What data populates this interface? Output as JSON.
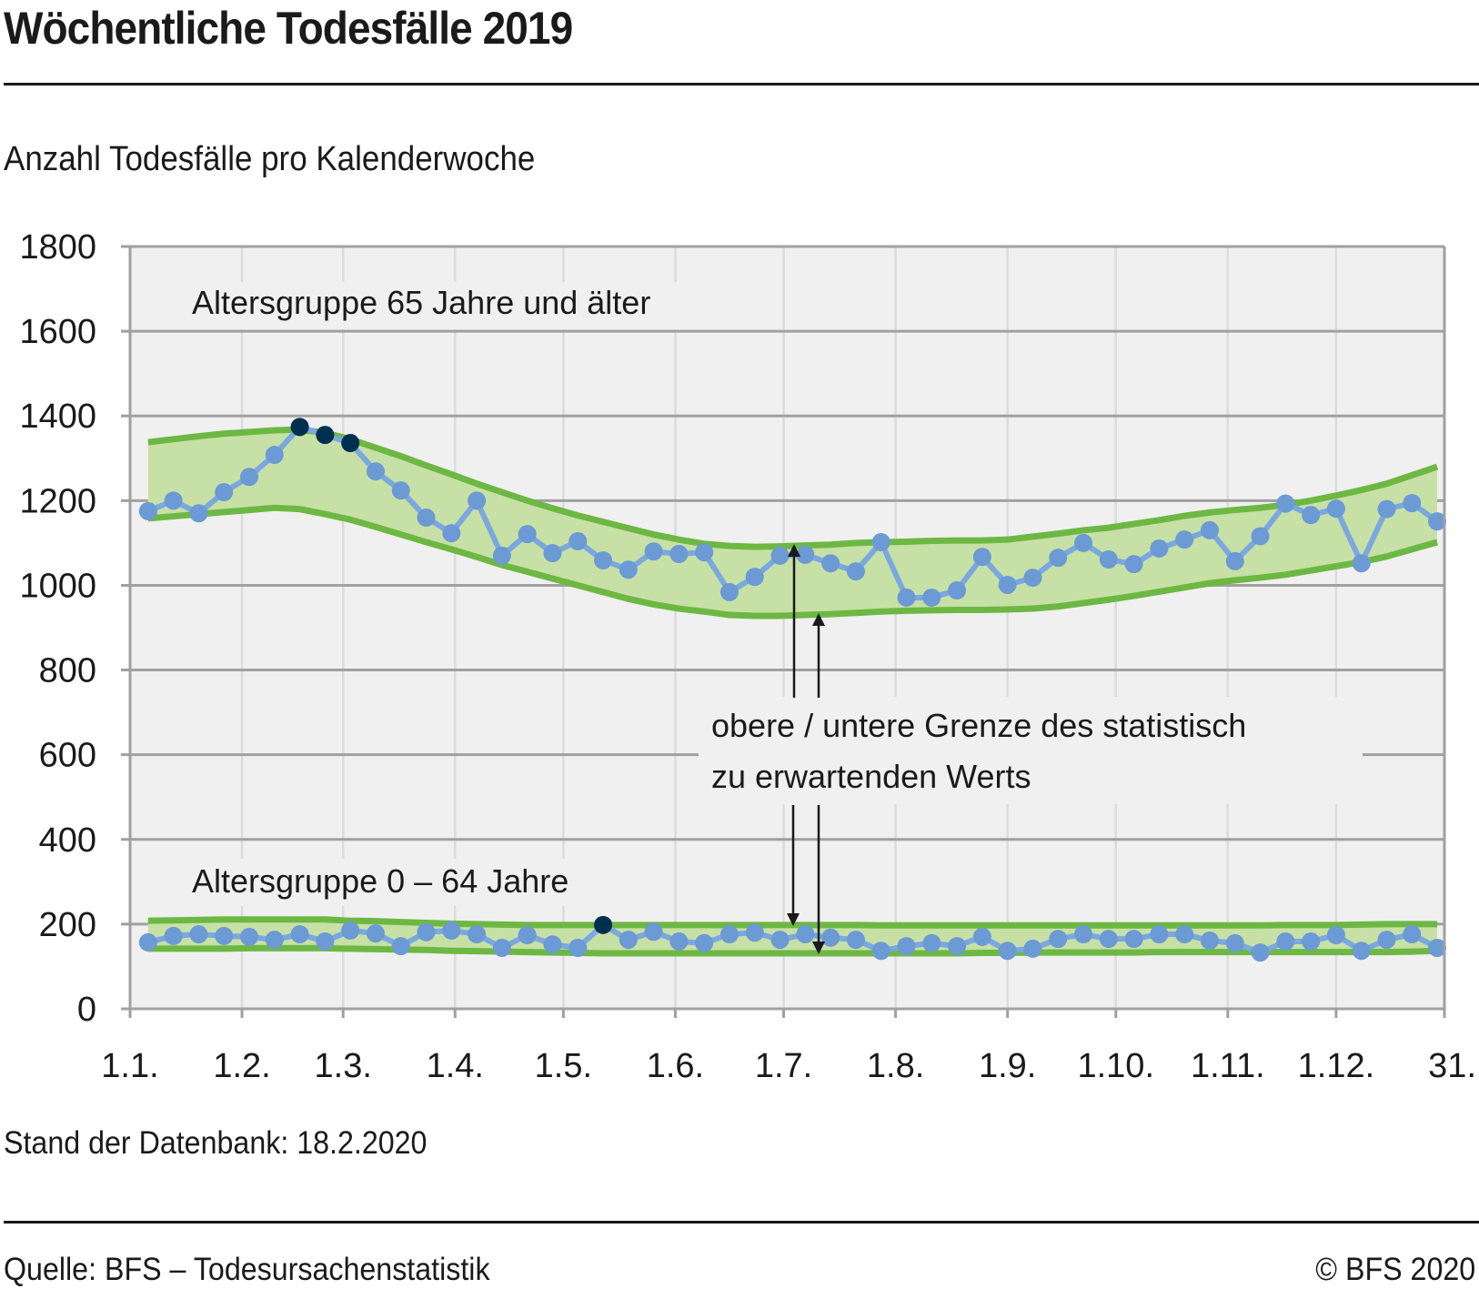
{
  "header": {
    "title": "Wöchentliche Todesfälle 2019",
    "subtitle": "Anzahl Todesfälle pro Kalenderwoche"
  },
  "footer": {
    "database_note": "Stand der Datenbank: 18.2.2020",
    "source": "Quelle: BFS – Todesursachenstatistik",
    "copyright": "© BFS 2020"
  },
  "colors": {
    "plot_background": "#f0f0f0",
    "gridline": "#a0a0a0",
    "band_fill": "#c7e0a5",
    "band_line": "#6db843",
    "series_line": "#7aa8df",
    "series_marker": "#6b9ad4",
    "highlight_marker": "#00304f",
    "arrow": "#1a1a1a"
  },
  "chart_data": {
    "type": "line",
    "title": "Wöchentliche Todesfälle 2019",
    "subtitle": "Anzahl Todesfälle pro Kalenderwoche",
    "xlabel": "",
    "ylabel": "",
    "ylim": [
      0,
      1800
    ],
    "yticks": [
      0,
      200,
      400,
      600,
      800,
      1000,
      1200,
      1400,
      1600,
      1800
    ],
    "ytick_labels": [
      "0",
      "200",
      "400",
      "600",
      "800",
      "1000",
      "1200",
      "1400",
      "1600",
      "1800"
    ],
    "x_unit": "day of year 2019",
    "xlim": [
      0,
      364
    ],
    "xticks": [
      0,
      31,
      59,
      90,
      120,
      151,
      181,
      212,
      243,
      273,
      304,
      334,
      364
    ],
    "xtick_labels": [
      "1.1.",
      "1.2.",
      "1.3.",
      "1.4.",
      "1.5.",
      "1.6.",
      "1.7.",
      "1.8.",
      "1.9.",
      "1.10.",
      "1.11.",
      "1.12.",
      "31."
    ],
    "grid": true,
    "legend": "none",
    "weeks": [
      1,
      2,
      3,
      4,
      5,
      6,
      7,
      8,
      9,
      10,
      11,
      12,
      13,
      14,
      15,
      16,
      17,
      18,
      19,
      20,
      21,
      22,
      23,
      24,
      25,
      26,
      27,
      28,
      29,
      30,
      31,
      32,
      33,
      34,
      35,
      36,
      37,
      38,
      39,
      40,
      41,
      42,
      43,
      44,
      45,
      46,
      47,
      48,
      49,
      50,
      51,
      52
    ],
    "week_day_of_year": [
      5,
      12,
      19,
      26,
      33,
      40,
      47,
      54,
      61,
      68,
      75,
      82,
      89,
      96,
      103,
      110,
      117,
      124,
      131,
      138,
      145,
      152,
      159,
      166,
      173,
      180,
      187,
      194,
      201,
      208,
      215,
      222,
      229,
      236,
      243,
      250,
      257,
      264,
      271,
      278,
      285,
      292,
      299,
      306,
      313,
      320,
      327,
      334,
      341,
      348,
      355,
      362
    ],
    "groups": [
      {
        "name": "Altersgruppe 65 Jahre und älter",
        "label": "Altersgruppe 65 Jahre und älter",
        "values": [
          1175,
          1200,
          1170,
          1220,
          1256,
          1308,
          1374,
          1355,
          1336,
          1269,
          1224,
          1160,
          1123,
          1200,
          1070,
          1121,
          1076,
          1104,
          1059,
          1037,
          1080,
          1074,
          1078,
          984,
          1020,
          1070,
          1072,
          1052,
          1033,
          1102,
          971,
          971,
          988,
          1067,
          1001,
          1018,
          1065,
          1100,
          1061,
          1050,
          1087,
          1108,
          1130,
          1057,
          1116,
          1193,
          1166,
          1181,
          1052,
          1180,
          1194,
          1151
        ],
        "highlighted_weeks": [
          7,
          8,
          9
        ],
        "upper_bound": [
          1338,
          1345,
          1352,
          1358,
          1362,
          1366,
          1368,
          1360,
          1345,
          1325,
          1305,
          1283,
          1262,
          1240,
          1220,
          1200,
          1182,
          1165,
          1150,
          1135,
          1120,
          1108,
          1098,
          1093,
          1091,
          1092,
          1094,
          1096,
          1100,
          1102,
          1103,
          1105,
          1106,
          1106,
          1108,
          1115,
          1122,
          1130,
          1136,
          1145,
          1154,
          1164,
          1172,
          1178,
          1183,
          1190,
          1200,
          1212,
          1225,
          1240,
          1260,
          1280
        ],
        "lower_bound": [
          1158,
          1163,
          1168,
          1173,
          1178,
          1183,
          1180,
          1168,
          1155,
          1138,
          1120,
          1102,
          1085,
          1067,
          1048,
          1032,
          1016,
          1000,
          984,
          968,
          955,
          945,
          938,
          930,
          928,
          928,
          930,
          932,
          935,
          938,
          940,
          941,
          942,
          942,
          943,
          945,
          950,
          958,
          966,
          975,
          985,
          995,
          1005,
          1012,
          1018,
          1025,
          1035,
          1045,
          1055,
          1068,
          1085,
          1102
        ]
      },
      {
        "name": "Altersgruppe 0–64 Jahre",
        "label": "Altersgruppe 0 – 64 Jahre",
        "values": [
          157,
          172,
          176,
          172,
          170,
          163,
          176,
          159,
          185,
          178,
          148,
          181,
          185,
          176,
          144,
          174,
          152,
          144,
          198,
          163,
          182,
          159,
          155,
          176,
          180,
          163,
          176,
          168,
          163,
          137,
          148,
          155,
          148,
          170,
          137,
          142,
          165,
          176,
          165,
          165,
          176,
          176,
          161,
          155,
          133,
          159,
          159,
          174,
          137,
          163,
          176,
          144
        ],
        "highlighted_weeks": [
          19
        ],
        "upper_bound": [
          208,
          209,
          210,
          211,
          211,
          211,
          211,
          211,
          208,
          207,
          205,
          203,
          201,
          200,
          199,
          198,
          198,
          198,
          198,
          198,
          198,
          198,
          198,
          198,
          198,
          198,
          198,
          198,
          198,
          197,
          197,
          197,
          197,
          197,
          197,
          197,
          197,
          197,
          197,
          197,
          197,
          197,
          197,
          197,
          197,
          198,
          198,
          198,
          199,
          200,
          200,
          200
        ],
        "lower_bound": [
          142,
          142,
          142,
          142,
          143,
          143,
          143,
          143,
          142,
          141,
          140,
          139,
          137,
          136,
          135,
          134,
          133,
          132,
          131,
          131,
          131,
          131,
          131,
          131,
          131,
          131,
          131,
          131,
          131,
          131,
          131,
          131,
          131,
          132,
          132,
          133,
          133,
          133,
          133,
          133,
          134,
          134,
          134,
          134,
          134,
          134,
          134,
          134,
          134,
          134,
          135,
          137
        ]
      }
    ],
    "annotations": {
      "band_explanation_line1": "obere / untere Grenze des statistisch",
      "band_explanation_line2": "zu erwartenden Werts"
    }
  }
}
